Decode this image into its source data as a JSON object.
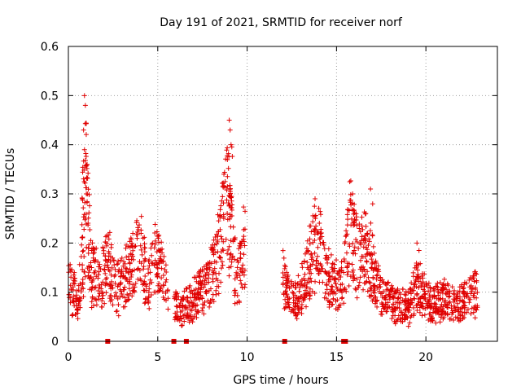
{
  "chart_data": {
    "type": "scatter",
    "title": "Day 191 of 2021, SRMTID for receiver norf",
    "xlabel": "GPS time / hours",
    "ylabel": "SRMTID / TECUs",
    "xlim": [
      0,
      24
    ],
    "ylim": [
      0,
      0.6
    ],
    "x_ticks": [
      0,
      5,
      10,
      15,
      20
    ],
    "y_ticks": [
      0,
      0.1,
      0.2,
      0.3,
      0.4,
      0.5,
      0.6
    ],
    "x_tick_labels": [
      "0",
      "5",
      "10",
      "15",
      "20"
    ],
    "y_tick_labels": [
      "0",
      "0.1",
      "0.2",
      "0.3",
      "0.4",
      "0.5",
      "0.6"
    ],
    "grid": true,
    "marker": "plus",
    "color": "#e00000",
    "segments": [
      {
        "x_start": 0.0,
        "x_end": 5.6,
        "keypoints": [
          [
            0.0,
            0.11
          ],
          [
            0.5,
            0.09
          ],
          [
            0.9,
            0.18
          ],
          [
            1.0,
            0.3
          ],
          [
            1.3,
            0.14
          ],
          [
            1.8,
            0.12
          ],
          [
            2.2,
            0.16
          ],
          [
            2.7,
            0.11
          ],
          [
            3.2,
            0.13
          ],
          [
            3.6,
            0.16
          ],
          [
            4.0,
            0.2
          ],
          [
            4.4,
            0.11
          ],
          [
            4.9,
            0.17
          ],
          [
            5.2,
            0.14
          ],
          [
            5.6,
            0.09
          ]
        ]
      },
      {
        "x_start": 5.9,
        "x_end": 9.9,
        "keypoints": [
          [
            5.9,
            0.07
          ],
          [
            6.3,
            0.06
          ],
          [
            6.8,
            0.08
          ],
          [
            7.3,
            0.1
          ],
          [
            7.8,
            0.11
          ],
          [
            8.2,
            0.15
          ],
          [
            8.6,
            0.22
          ],
          [
            8.9,
            0.28
          ],
          [
            9.1,
            0.22
          ],
          [
            9.4,
            0.12
          ],
          [
            9.7,
            0.16
          ],
          [
            9.9,
            0.2
          ]
        ]
      },
      {
        "x_start": 12.0,
        "x_end": 17.0,
        "keypoints": [
          [
            12.0,
            0.13
          ],
          [
            12.3,
            0.09
          ],
          [
            12.8,
            0.08
          ],
          [
            13.2,
            0.12
          ],
          [
            13.6,
            0.17
          ],
          [
            14.0,
            0.2
          ],
          [
            14.5,
            0.13
          ],
          [
            15.0,
            0.11
          ],
          [
            15.4,
            0.12
          ],
          [
            15.8,
            0.24
          ],
          [
            16.2,
            0.16
          ],
          [
            16.6,
            0.19
          ],
          [
            17.0,
            0.14
          ]
        ]
      },
      {
        "x_start": 17.0,
        "x_end": 22.9,
        "keypoints": [
          [
            17.0,
            0.14
          ],
          [
            17.5,
            0.09
          ],
          [
            18.0,
            0.08
          ],
          [
            18.5,
            0.07
          ],
          [
            19.0,
            0.07
          ],
          [
            19.4,
            0.11
          ],
          [
            19.8,
            0.1
          ],
          [
            20.3,
            0.07
          ],
          [
            20.8,
            0.09
          ],
          [
            21.3,
            0.08
          ],
          [
            21.8,
            0.07
          ],
          [
            22.3,
            0.09
          ],
          [
            22.9,
            0.11
          ]
        ]
      }
    ],
    "spikes": [
      {
        "x": 0.9,
        "y": 0.5
      },
      {
        "x": 0.95,
        "y": 0.48
      },
      {
        "x": 0.85,
        "y": 0.43
      },
      {
        "x": 0.9,
        "y": 0.39
      },
      {
        "x": 9.0,
        "y": 0.45
      },
      {
        "x": 9.05,
        "y": 0.43
      },
      {
        "x": 9.1,
        "y": 0.4
      },
      {
        "x": 8.7,
        "y": 0.34
      },
      {
        "x": 13.8,
        "y": 0.29
      },
      {
        "x": 15.9,
        "y": 0.3
      },
      {
        "x": 16.9,
        "y": 0.31
      },
      {
        "x": 19.5,
        "y": 0.2
      }
    ],
    "zero_markers": [
      2.2,
      5.9,
      6.6,
      12.1,
      15.4,
      15.5
    ]
  }
}
